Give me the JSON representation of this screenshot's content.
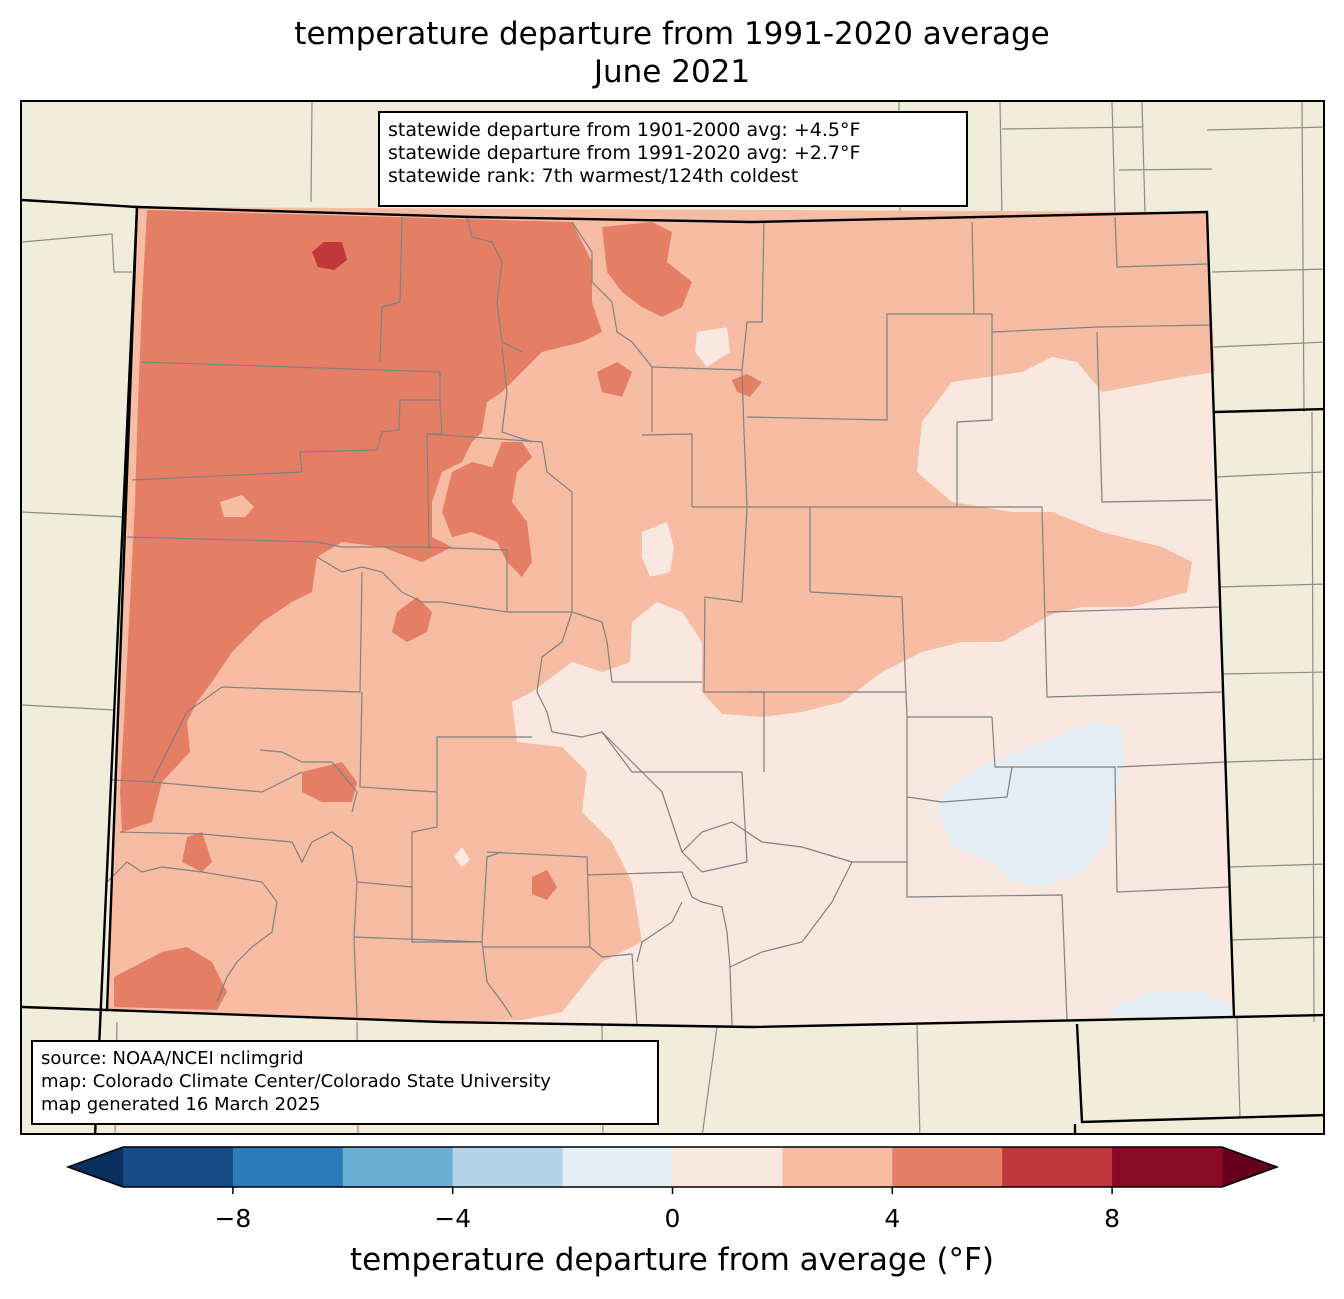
{
  "title": {
    "line1": "temperature departure from 1991-2020 average",
    "line2": "June 2021"
  },
  "stats": [
    "statewide departure from 1901-2000 avg: +4.5°F",
    "statewide departure from 1991-2020 avg: +2.7°F",
    "statewide rank: 7th warmest/124th coldest"
  ],
  "source": [
    "source: NOAA/NCEI nclimgrid",
    "map: Colorado Climate Center/Colorado State University",
    "map generated 16 March 2025"
  ],
  "colorbar": {
    "label": "temperature departure from average (°F)",
    "ticks": [
      "−8",
      "−4",
      "0",
      "4",
      "8"
    ],
    "tick_values": [
      -8,
      -4,
      0,
      4,
      8
    ],
    "bins": [
      {
        "min": -10,
        "max": -8,
        "color": "#154a85"
      },
      {
        "min": -8,
        "max": -6,
        "color": "#2e7ab9"
      },
      {
        "min": -6,
        "max": -4,
        "color": "#6aaed2"
      },
      {
        "min": -4,
        "max": -2,
        "color": "#b2d5e7"
      },
      {
        "min": -2,
        "max": 0,
        "color": "#e5eef5"
      },
      {
        "min": 0,
        "max": 2,
        "color": "#f9e8e0"
      },
      {
        "min": 2,
        "max": 4,
        "color": "#f7bda4"
      },
      {
        "min": 4,
        "max": 6,
        "color": "#e47f66"
      },
      {
        "min": 6,
        "max": 8,
        "color": "#bf373a"
      },
      {
        "min": 8,
        "max": 10,
        "color": "#880a24"
      }
    ],
    "under_color": "#0a2e5d",
    "over_color": "#67001f"
  },
  "map_colors": {
    "background": "#f0eedb",
    "state_border": "#000000",
    "county_border": "#808080"
  }
}
